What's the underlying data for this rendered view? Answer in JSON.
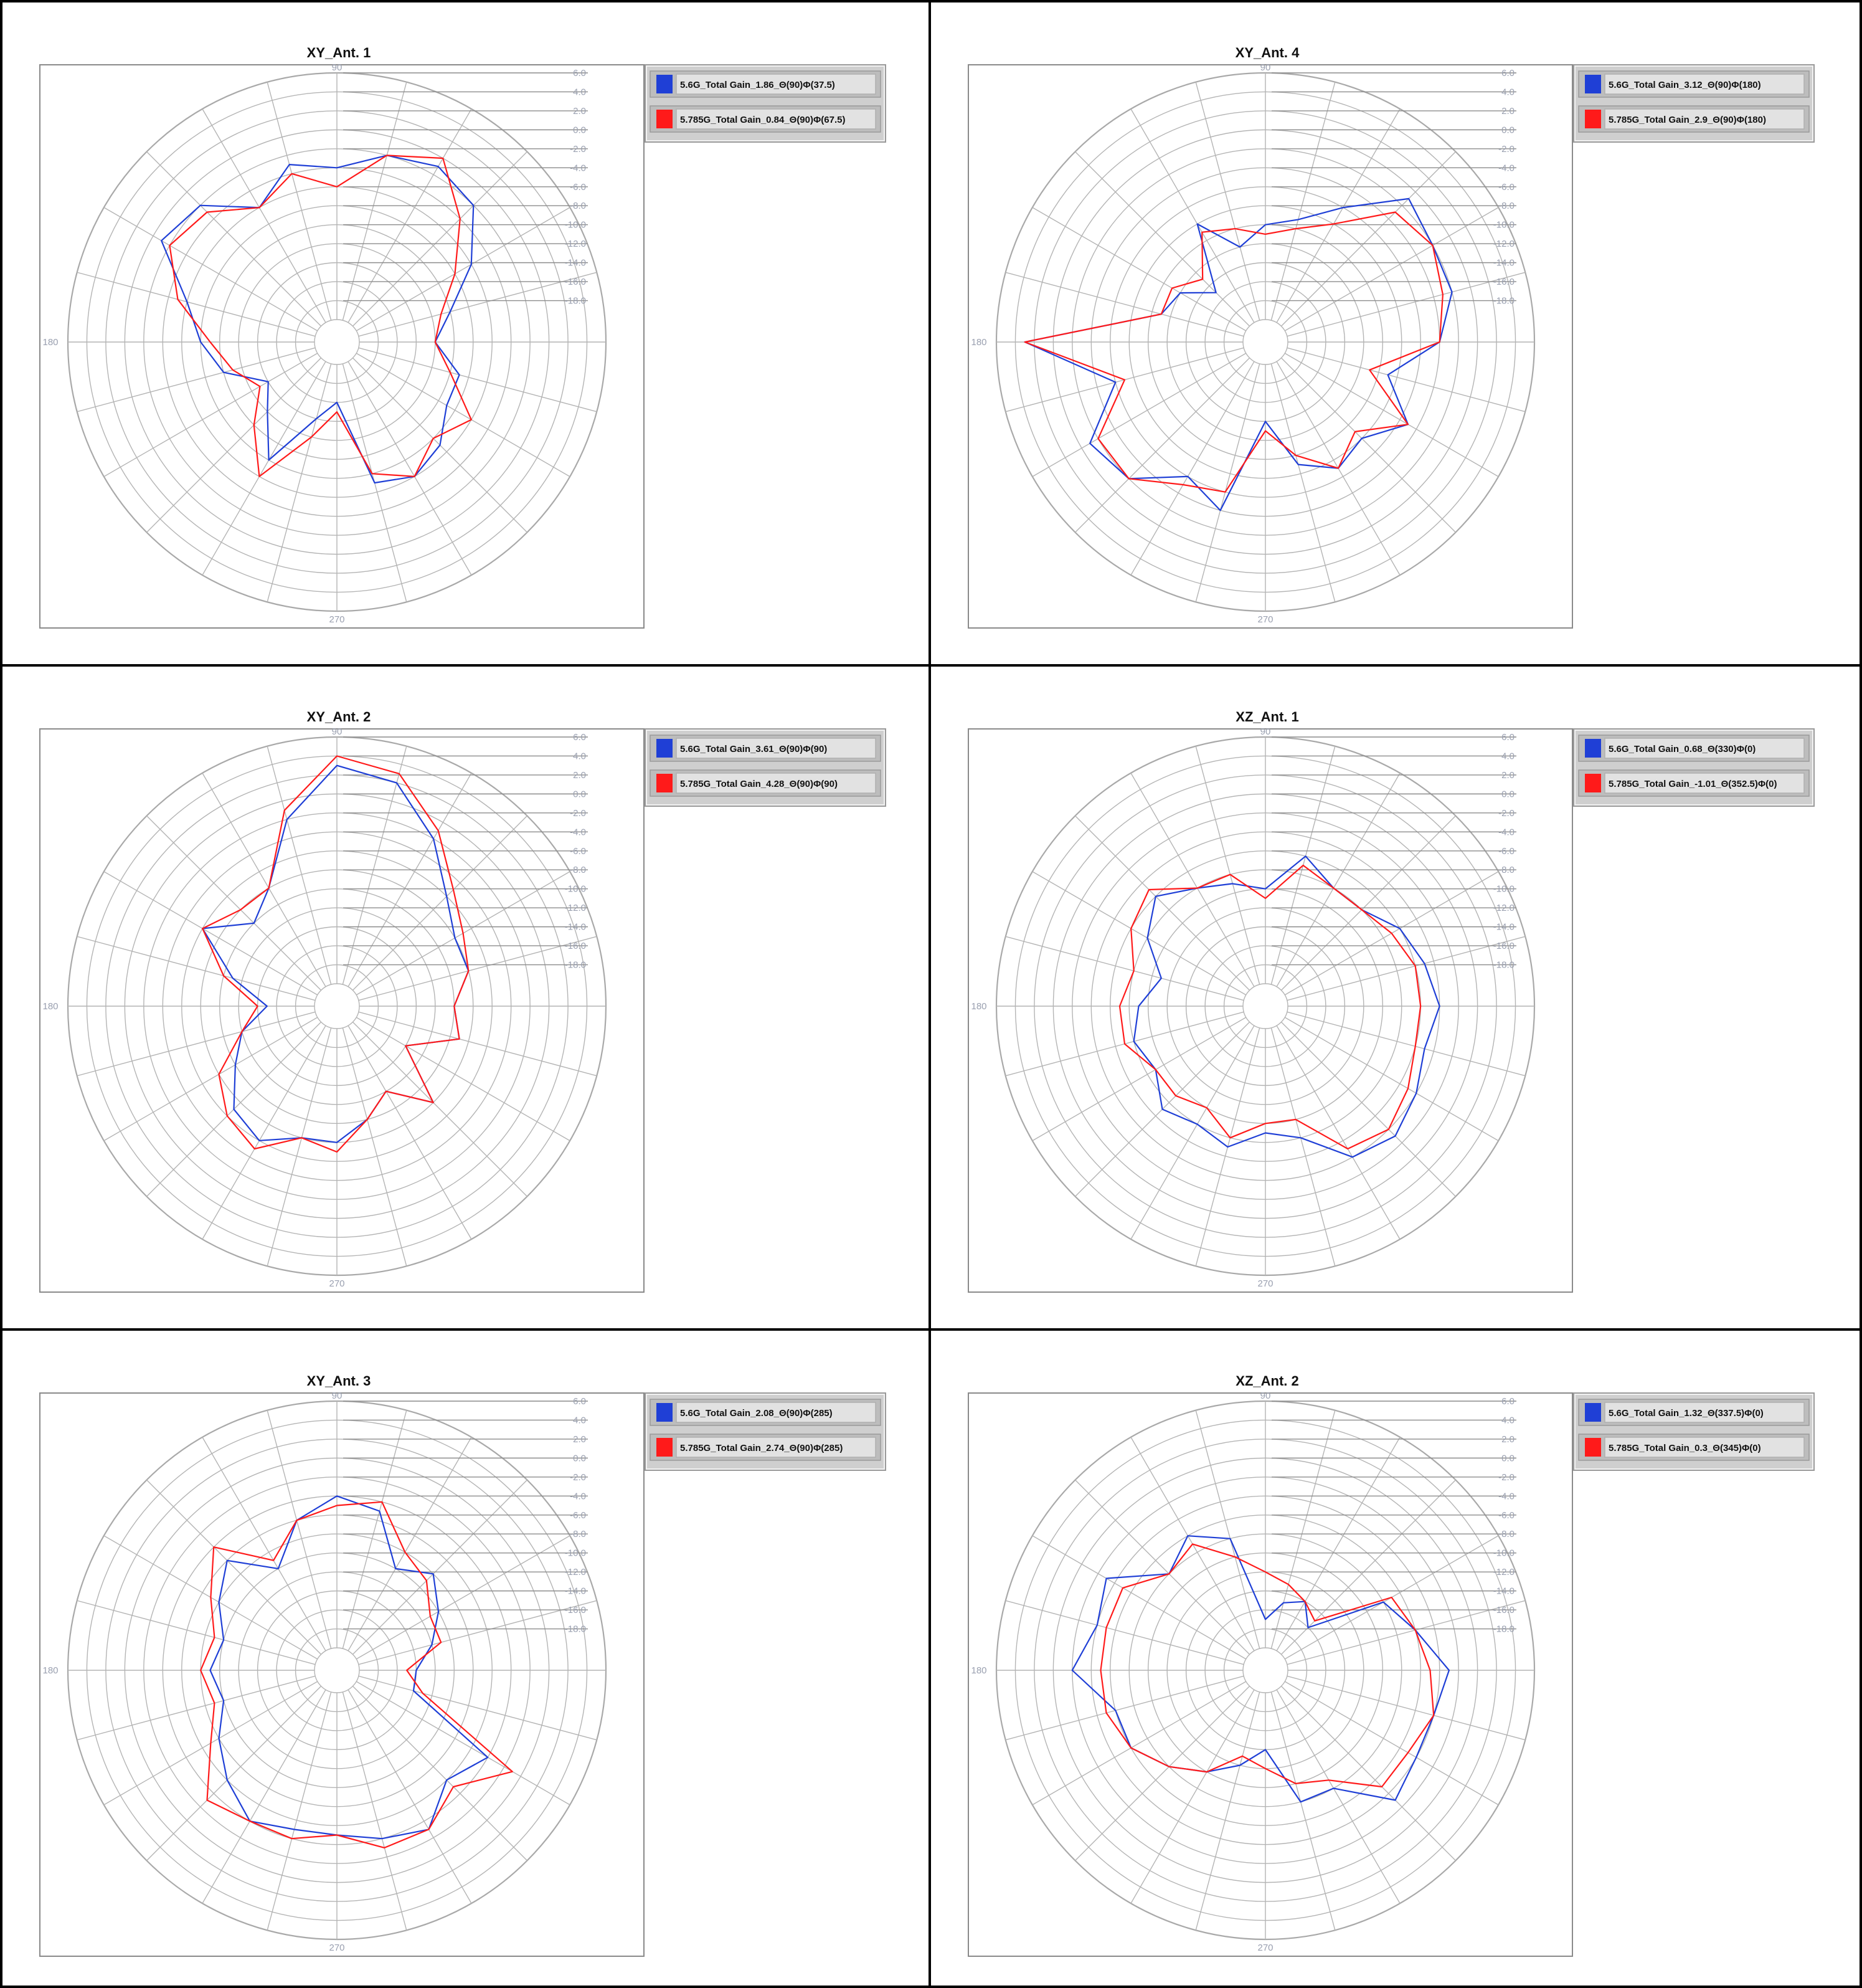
{
  "colors": {
    "series1": "#1f3fd6",
    "series2": "#ff1a1a",
    "grid": "#b4b4b4",
    "rim": "#a9a9a9",
    "tick_label": "#9aa0b0",
    "frame": "#000000",
    "plot_border": "#8a8a8a",
    "legend_bg": "#cfcfcf",
    "legend_row_bg": "#e2e2e2"
  },
  "chart_data": [
    {
      "type": "polar-line",
      "title": "XY_Ant. 1",
      "angle_labels": [
        "90",
        "180",
        "270"
      ],
      "radial_ticks": [
        "6.0",
        "4.0",
        "2.0",
        "0.0",
        "-2.0",
        "-4.0",
        "-6.0",
        "-8.0",
        "-10.0",
        "-12.0",
        "-14.0",
        "-16.0",
        "-18.0"
      ],
      "rlim": [
        -20,
        6
      ],
      "grid": true,
      "legend_position": "top-right",
      "series": [
        {
          "name": "5.6G_Total Gain_1.86_Θ(90)Φ(37.5)",
          "theta": [
            0,
            15,
            30,
            45,
            60,
            75,
            90,
            105,
            120,
            135,
            150,
            165,
            180,
            195,
            210,
            225,
            240,
            255,
            270,
            285,
            300,
            315,
            330,
            345
          ],
          "r": [
            -12,
            -10,
            -6,
            -2,
            -1,
            -2,
            -4,
            -3,
            -6,
            -2,
            -1,
            -6,
            -8,
            -10,
            -14,
            -12,
            -8,
            -14,
            -16,
            -7,
            -6,
            -7,
            -9,
            -9
          ]
        },
        {
          "name": "5.785G_Total Gain_0.84_Θ(90)Φ(67.5)",
          "theta": [
            0,
            15,
            30,
            45,
            60,
            75,
            90,
            105,
            120,
            135,
            150,
            165,
            180,
            195,
            210,
            225,
            240,
            255,
            270,
            285,
            300,
            315,
            330,
            345
          ],
          "r": [
            -12,
            -11,
            -8,
            -4,
            0,
            -2,
            -6,
            -4,
            -6,
            -3,
            -2,
            -5,
            -9,
            -11,
            -13,
            -10,
            -6,
            -12,
            -15,
            -8,
            -6,
            -8,
            -6,
            -10
          ]
        }
      ]
    },
    {
      "type": "polar-line",
      "title": "XY_Ant. 4",
      "angle_labels": [
        "90",
        "180",
        "270"
      ],
      "radial_ticks": [
        "6.0",
        "4.0",
        "2.0",
        "0.0",
        "-2.0",
        "-4.0",
        "-6.0",
        "-8.0",
        "-10.0",
        "-12.0",
        "-14.0",
        "-16.0",
        "-18.0"
      ],
      "rlim": [
        -20,
        6
      ],
      "grid": true,
      "legend_position": "top-right",
      "series": [
        {
          "name": "5.6G_Total Gain_3.12_Θ(90)Φ(180)",
          "theta": [
            0,
            15,
            30,
            45,
            60,
            75,
            90,
            105,
            120,
            135,
            150,
            165,
            180,
            195,
            210,
            225,
            240,
            255,
            270,
            285,
            300,
            315,
            330,
            345
          ],
          "r": [
            -4,
            -2,
            -2,
            -1,
            -6,
            -9,
            -10,
            -12,
            -8,
            -15,
            -12,
            -11,
            3,
            -6,
            -1,
            -2,
            -6,
            -4,
            -14,
            -9,
            -7,
            -8,
            -5,
            -9
          ]
        },
        {
          "name": "5.785G_Total Gain_2.9_Θ(90)Φ(180)",
          "theta": [
            0,
            15,
            30,
            45,
            60,
            75,
            90,
            105,
            120,
            135,
            150,
            165,
            180,
            195,
            210,
            225,
            240,
            255,
            270,
            285,
            300,
            315,
            330,
            345
          ],
          "r": [
            -4,
            -3,
            -2,
            -3,
            -8,
            -10,
            -11,
            -10,
            -9,
            -13,
            -11,
            -11,
            3,
            -7,
            -2,
            -2,
            -5,
            -6,
            -13,
            -10,
            -7,
            -9,
            -5,
            -11
          ]
        }
      ]
    },
    {
      "type": "polar-line",
      "title": "XY_Ant. 2",
      "angle_labels": [
        "90",
        "180",
        "270"
      ],
      "radial_ticks": [
        "6.0",
        "4.0",
        "2.0",
        "0.0",
        "-2.0",
        "-4.0",
        "-6.0",
        "-8.0",
        "-10.0",
        "-12.0",
        "-14.0",
        "-16.0",
        "-18.0"
      ],
      "rlim": [
        -20,
        6
      ],
      "grid": true,
      "legend_position": "top-right",
      "series": [
        {
          "name": "5.6G_Total Gain_3.61_Θ(90)Φ(90)",
          "theta": [
            0,
            15,
            30,
            45,
            60,
            75,
            90,
            105,
            120,
            135,
            150,
            165,
            180,
            195,
            210,
            225,
            240,
            255,
            270,
            285,
            300,
            315,
            330,
            345
          ],
          "r": [
            -10,
            -8,
            -8,
            -6,
            -2,
            2,
            3,
            -2,
            -8,
            -10,
            -6,
            -11,
            -15,
            -12,
            -10,
            -7,
            -6,
            -8,
            -8,
            -10,
            -12,
            -8,
            -14,
            -9
          ]
        },
        {
          "name": "5.785G_Total Gain_4.28_Θ(90)Φ(90)",
          "theta": [
            0,
            15,
            30,
            45,
            60,
            75,
            90,
            105,
            120,
            135,
            150,
            165,
            180,
            195,
            210,
            225,
            240,
            255,
            270,
            285,
            300,
            315,
            330,
            345
          ],
          "r": [
            -10,
            -8,
            -7,
            -5,
            -1,
            3,
            4,
            -1,
            -8,
            -8,
            -6,
            -10,
            -14,
            -12,
            -8,
            -6,
            -5,
            -8,
            -7,
            -10,
            -12,
            -8,
            -14,
            -9
          ]
        }
      ]
    },
    {
      "type": "polar-line",
      "title": "XZ_Ant. 1",
      "angle_labels": [
        "90",
        "180",
        "270"
      ],
      "radial_ticks": [
        "6.0",
        "4.0",
        "2.0",
        "0.0",
        "-2.0",
        "-4.0",
        "-6.0",
        "-8.0",
        "-10.0",
        "-12.0",
        "-14.0",
        "-16.0",
        "-18.0"
      ],
      "rlim": [
        -20,
        6
      ],
      "grid": true,
      "legend_position": "top-right",
      "series": [
        {
          "name": "5.6G_Total Gain_0.68_Θ(330)Φ(0)",
          "theta": [
            0,
            15,
            30,
            45,
            60,
            75,
            90,
            105,
            120,
            135,
            150,
            165,
            180,
            195,
            210,
            225,
            240,
            255,
            270,
            285,
            300,
            315,
            330,
            345
          ],
          "r": [
            -4,
            -5,
            -6,
            -8,
            -8,
            -6,
            -10,
            -9,
            -8,
            -6,
            -8,
            -11,
            -9,
            -8,
            -9,
            -7,
            -8,
            -7,
            -9,
            -8,
            -4,
            -3,
            -4,
            -5
          ]
        },
        {
          "name": "5.785G_Total Gain_-1.01_Θ(352.5)Φ(0)",
          "theta": [
            0,
            15,
            30,
            45,
            60,
            75,
            90,
            105,
            120,
            135,
            150,
            165,
            180,
            195,
            210,
            225,
            240,
            255,
            270,
            285,
            300,
            315,
            330,
            345
          ],
          "r": [
            -6,
            -6,
            -7,
            -8,
            -8,
            -7,
            -11,
            -8,
            -8,
            -5,
            -6,
            -8,
            -7,
            -7,
            -9,
            -9,
            -10,
            -8,
            -10,
            -10,
            -5,
            -4,
            -5,
            -6
          ]
        }
      ]
    },
    {
      "type": "polar-line",
      "title": "XY_Ant. 3",
      "angle_labels": [
        "90",
        "180",
        "270"
      ],
      "radial_ticks": [
        "6.0",
        "4.0",
        "2.0",
        "0.0",
        "-2.0",
        "-4.0",
        "-6.0",
        "-8.0",
        "-10.0",
        "-12.0",
        "-14.0",
        "-16.0",
        "-18.0"
      ],
      "rlim": [
        -20,
        6
      ],
      "grid": true,
      "legend_position": "top-right",
      "series": [
        {
          "name": "5.6G_Total Gain_2.08_Θ(90)Φ(285)",
          "theta": [
            0,
            15,
            30,
            45,
            60,
            75,
            90,
            105,
            120,
            135,
            150,
            165,
            180,
            195,
            210,
            225,
            240,
            255,
            270,
            285,
            300,
            315,
            330,
            345
          ],
          "r": [
            -14,
            -12,
            -10,
            -8,
            -10,
            -5,
            -4,
            -6,
            -10,
            -6,
            -8,
            -10,
            -9,
            -10,
            -8,
            -6,
            -4,
            -5,
            -5,
            -4,
            -3,
            -6,
            -4,
            -14
          ]
        },
        {
          "name": "5.785G_Total Gain_2.74_Θ(90)Φ(285)",
          "theta": [
            0,
            15,
            30,
            45,
            60,
            75,
            90,
            105,
            120,
            135,
            150,
            165,
            180,
            195,
            210,
            225,
            240,
            255,
            270,
            285,
            300,
            315,
            330,
            345
          ],
          "r": [
            -15,
            -11,
            -11,
            -9,
            -8,
            -4,
            -5,
            -6,
            -9,
            -4,
            -7,
            -9,
            -8,
            -9,
            -7,
            -3,
            -4,
            -4,
            -5,
            -3,
            -3,
            -5,
            -1,
            -13
          ]
        }
      ]
    },
    {
      "type": "polar-line",
      "title": "XZ_Ant. 2",
      "angle_labels": [
        "90",
        "180",
        "270"
      ],
      "radial_ticks": [
        "6.0",
        "4.0",
        "2.0",
        "0.0",
        "-2.0",
        "-4.0",
        "-6.0",
        "-8.0",
        "-10.0",
        "-12.0",
        "-14.0",
        "-16.0",
        "-18.0"
      ],
      "rlim": [
        -20,
        6
      ],
      "grid": true,
      "legend_position": "top-right",
      "series": [
        {
          "name": "5.6G_Total Gain_1.32_Θ(337.5)Φ(0)",
          "theta": [
            0,
            15,
            30,
            45,
            60,
            75,
            90,
            105,
            120,
            135,
            150,
            165,
            180,
            195,
            210,
            225,
            240,
            255,
            270,
            285,
            300,
            315,
            330,
            345
          ],
          "r": [
            -3,
            -6,
            -8,
            -16,
            -14,
            -15,
            -17,
            -8,
            -6,
            -8,
            -3,
            -4,
            -2,
            -6,
            -6,
            -8,
            -10,
            -12,
            -14,
            -8,
            -8,
            -3,
            -4,
            -4
          ]
        },
        {
          "name": "5.785G_Total Gain_0.3_Θ(345)Φ(0)",
          "theta": [
            0,
            15,
            30,
            45,
            60,
            75,
            90,
            105,
            120,
            135,
            150,
            165,
            180,
            195,
            210,
            225,
            240,
            255,
            270,
            285,
            300,
            315,
            330,
            345
          ],
          "r": [
            -5,
            -6,
            -7,
            -15,
            -14,
            -13,
            -12,
            -10,
            -7,
            -8,
            -5,
            -5,
            -5,
            -5,
            -6,
            -8,
            -10,
            -13,
            -12,
            -10,
            -9,
            -5,
            -5,
            -4
          ]
        }
      ]
    }
  ]
}
